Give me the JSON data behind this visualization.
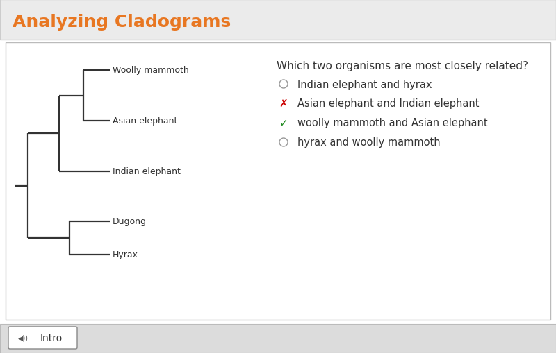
{
  "title": "Analyzing Cladograms",
  "title_color": "#E87722",
  "title_fontsize": 18,
  "bg_color": "#FFFFFF",
  "header_bg": "#EBEBEB",
  "question": "Which two organisms are most closely related?",
  "question_fontsize": 11,
  "options": [
    {
      "text": "Indian elephant and hyrax",
      "marker": "circle",
      "marker_color": "#AAAAAA",
      "text_color": "#333333"
    },
    {
      "text": "Asian elephant and Indian elephant",
      "marker": "x",
      "marker_color": "#CC0000",
      "text_color": "#333333"
    },
    {
      "text": "woolly mammoth and Asian elephant",
      "marker": "check",
      "marker_color": "#228B22",
      "text_color": "#333333"
    },
    {
      "text": "hyrax and woolly mammoth",
      "marker": "circle",
      "marker_color": "#AAAAAA",
      "text_color": "#333333"
    }
  ],
  "cladogram": {
    "organisms": [
      "Woolly mammoth",
      "Asian elephant",
      "Indian elephant",
      "Dugong",
      "Hyrax"
    ],
    "line_color": "#333333",
    "line_width": 1.6
  },
  "footer_bg": "#DCDCDC",
  "footer_text": "Intro",
  "footer_fontsize": 10
}
